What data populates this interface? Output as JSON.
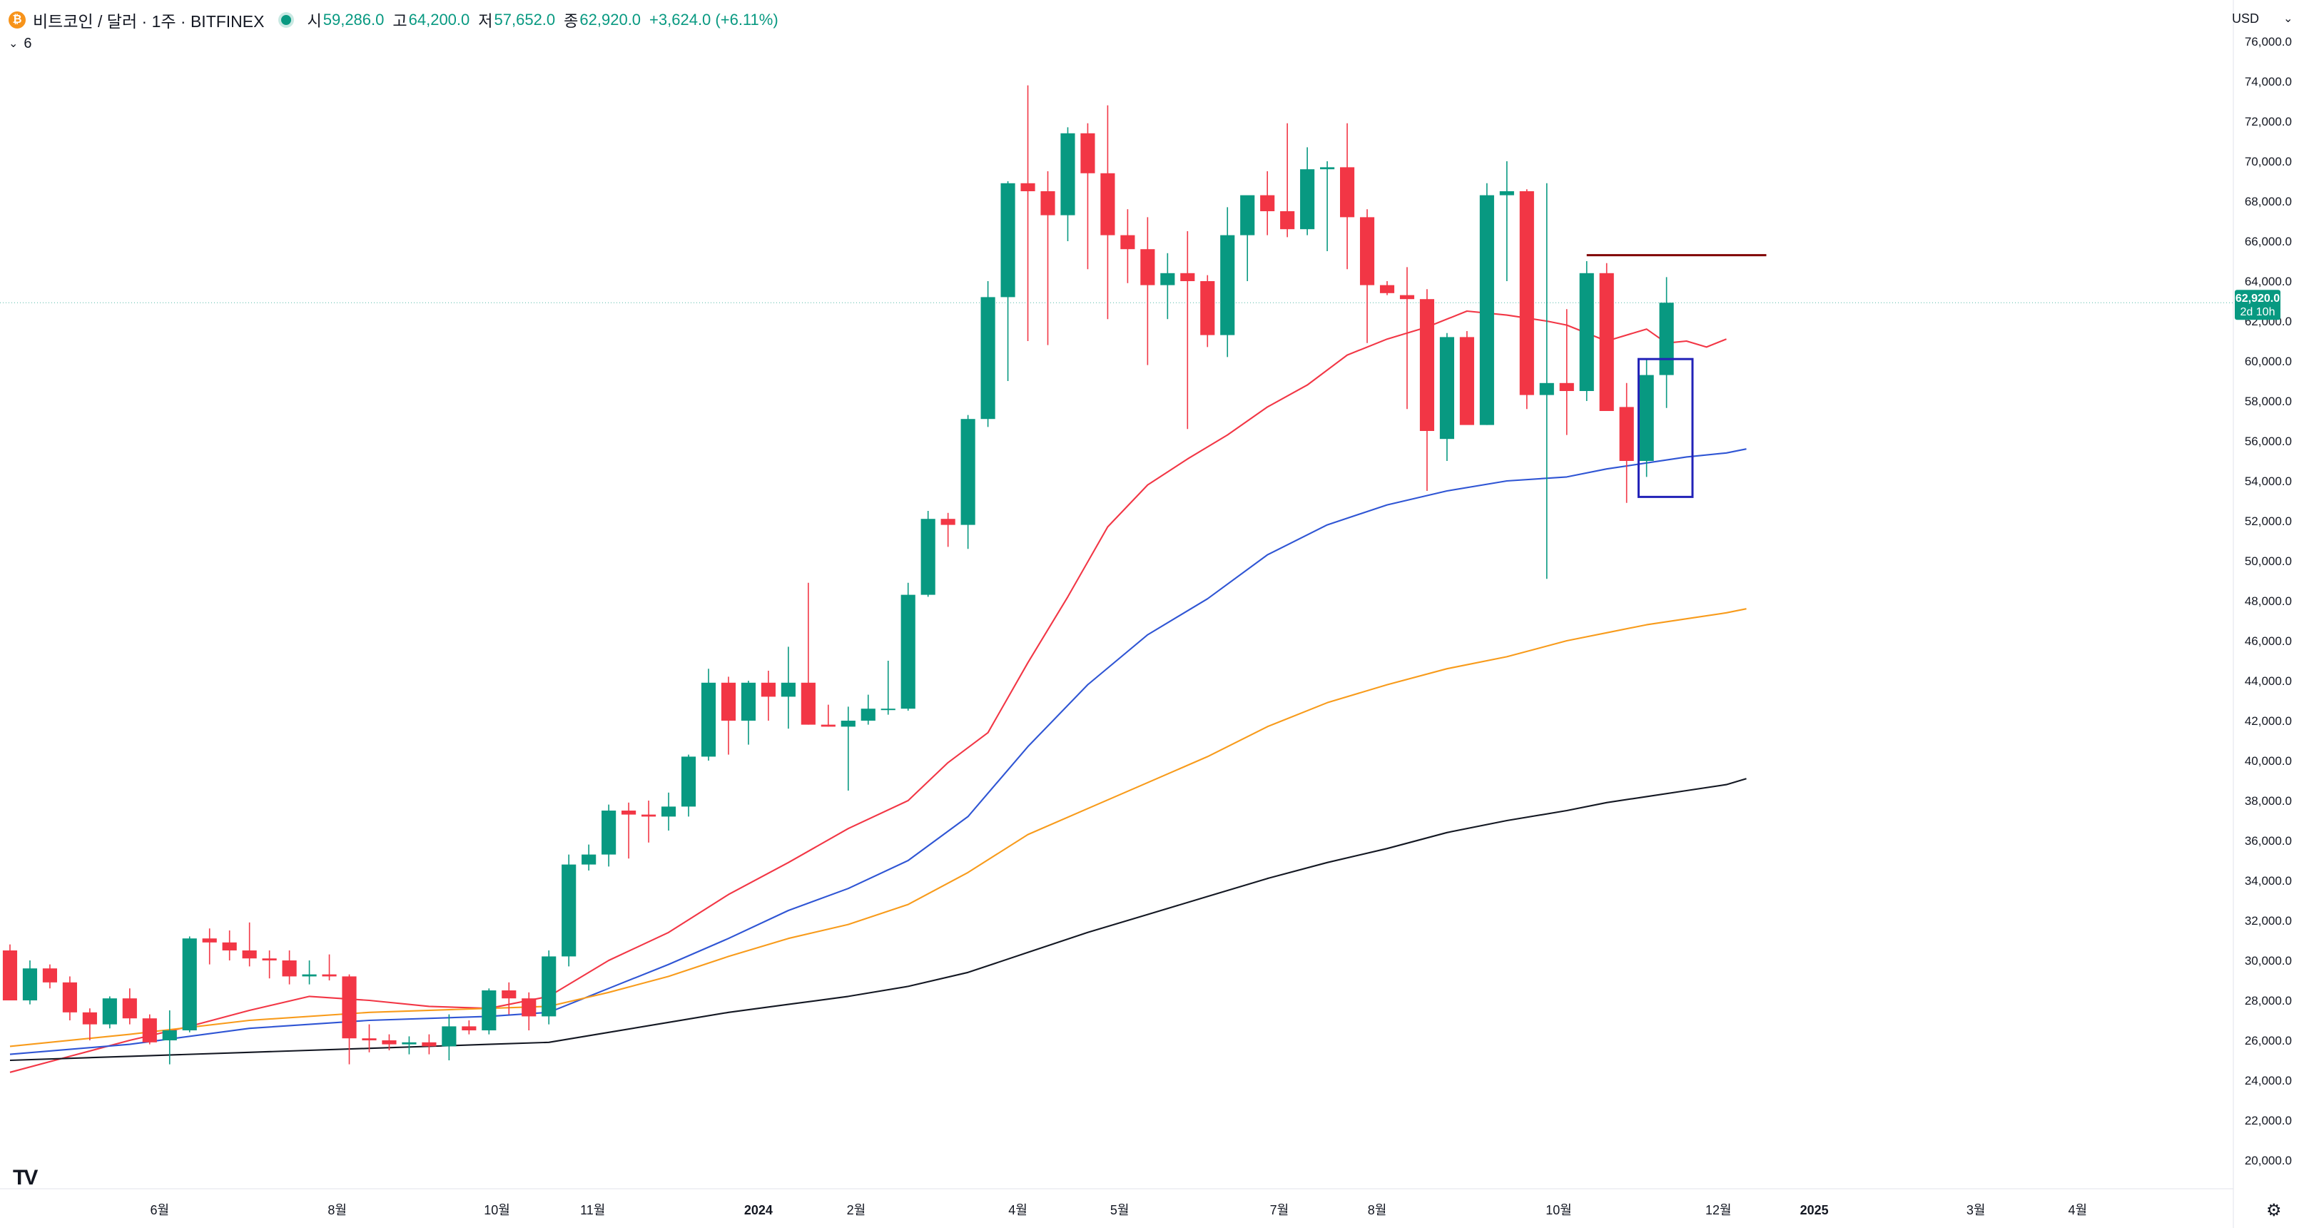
{
  "header": {
    "coin_icon": "bitcoin-icon",
    "symbol": "비트코인 / 달러 · 1주 · BITFINEX",
    "open_label": "시",
    "open_value": "59,286.0",
    "high_label": "고",
    "high_value": "64,200.0",
    "low_label": "저",
    "low_value": "57,652.0",
    "close_label": "종",
    "close_value": "62,920.0",
    "change": "+3,624.0 (+6.11%)"
  },
  "indicator_toggle": {
    "icon": "chevron-down-icon",
    "count": "6"
  },
  "currency": {
    "label": "USD",
    "icon": "chevron-down-icon"
  },
  "price_tag": {
    "value": "62,920.0",
    "countdown": "2d 10h"
  },
  "logo": "TV",
  "settings_icon": "gear-icon",
  "colors": {
    "up": "#089981",
    "down": "#f23645",
    "ma_short": "#f23645",
    "ma_mid": "#2f55d4",
    "ma_long": "#f89b1b",
    "ma_longest": "#131722",
    "resistance": "#800000",
    "box": "#2323b8"
  },
  "chart_data": {
    "type": "candlestick",
    "timeframe": "1W",
    "ylim": [
      19500,
      77000
    ],
    "y_ticks": [
      20000,
      22000,
      24000,
      26000,
      28000,
      30000,
      32000,
      34000,
      36000,
      38000,
      40000,
      42000,
      44000,
      46000,
      48000,
      50000,
      52000,
      54000,
      56000,
      58000,
      60000,
      62000,
      64000,
      66000,
      68000,
      70000,
      72000,
      74000,
      76000
    ],
    "y_tick_labels": [
      "20,000.0",
      "22,000.0",
      "24,000.0",
      "26,000.0",
      "28,000.0",
      "30,000.0",
      "32,000.0",
      "34,000.0",
      "36,000.0",
      "38,000.0",
      "40,000.0",
      "42,000.0",
      "44,000.0",
      "46,000.0",
      "48,000.0",
      "50,000.0",
      "52,000.0",
      "54,000.0",
      "56,000.0",
      "58,000.0",
      "60,000.0",
      "62,000.0",
      "64,000.0",
      "66,000.0",
      "68,000.0",
      "70,000.0",
      "72,000.0",
      "74,000.0",
      "76,000.0"
    ],
    "x_ticks": [
      {
        "label": "6월",
        "bar": 7.5
      },
      {
        "label": "8월",
        "bar": 16.4
      },
      {
        "label": "10월",
        "bar": 24.4
      },
      {
        "label": "11월",
        "bar": 29.2
      },
      {
        "label": "2024",
        "bar": 37.5
      },
      {
        "label": "2월",
        "bar": 42.4
      },
      {
        "label": "4월",
        "bar": 50.5
      },
      {
        "label": "5월",
        "bar": 55.6
      },
      {
        "label": "7월",
        "bar": 63.6
      },
      {
        "label": "8월",
        "bar": 68.5
      },
      {
        "label": "10월",
        "bar": 77.6
      },
      {
        "label": "12월",
        "bar": 85.6
      },
      {
        "label": "2025",
        "bar": 90.4
      },
      {
        "label": "3월",
        "bar": 98.5
      },
      {
        "label": "4월",
        "bar": 103.6
      }
    ],
    "x_bar_range": [
      -0.5,
      111.4
    ],
    "candles": [
      [
        30500,
        30800,
        28000,
        28000
      ],
      [
        28000,
        30000,
        27800,
        29600
      ],
      [
        29600,
        29800,
        28600,
        28900
      ],
      [
        28900,
        29200,
        27000,
        27400
      ],
      [
        27400,
        27600,
        26000,
        26800
      ],
      [
        26800,
        28200,
        26600,
        28100
      ],
      [
        28100,
        28600,
        26800,
        27100
      ],
      [
        27100,
        27300,
        25800,
        25900
      ],
      [
        26000,
        27500,
        24800,
        26500
      ],
      [
        26500,
        31200,
        26400,
        31100
      ],
      [
        31100,
        31600,
        29800,
        30900
      ],
      [
        30900,
        31500,
        30000,
        30500
      ],
      [
        30500,
        31900,
        29700,
        30100
      ],
      [
        30100,
        30500,
        29100,
        30000
      ],
      [
        30000,
        30500,
        28800,
        29200
      ],
      [
        29200,
        30000,
        28800,
        29300
      ],
      [
        29300,
        30300,
        29000,
        29200
      ],
      [
        29200,
        29300,
        24800,
        26100
      ],
      [
        26100,
        26800,
        25400,
        26000
      ],
      [
        26000,
        26300,
        25500,
        25800
      ],
      [
        25800,
        26200,
        25300,
        25900
      ],
      [
        25900,
        26300,
        25300,
        25700
      ],
      [
        25700,
        27300,
        25000,
        26700
      ],
      [
        26700,
        27000,
        26300,
        26500
      ],
      [
        26500,
        28600,
        26300,
        28500
      ],
      [
        28500,
        28900,
        27300,
        28100
      ],
      [
        28100,
        28400,
        26500,
        27200
      ],
      [
        27200,
        30500,
        26800,
        30200
      ],
      [
        30200,
        35300,
        29700,
        34800
      ],
      [
        34800,
        35800,
        34500,
        35300
      ],
      [
        35300,
        37800,
        34700,
        37500
      ],
      [
        37500,
        37900,
        35100,
        37300
      ],
      [
        37300,
        38000,
        35900,
        37200
      ],
      [
        37200,
        38400,
        36500,
        37700
      ],
      [
        37700,
        40300,
        37200,
        40200
      ],
      [
        40200,
        44600,
        40000,
        43900
      ],
      [
        43900,
        44200,
        40300,
        42000
      ],
      [
        42000,
        44000,
        40800,
        43900
      ],
      [
        43900,
        44500,
        42000,
        43200
      ],
      [
        43200,
        45700,
        41600,
        43900
      ],
      [
        43900,
        48900,
        41800,
        41800
      ],
      [
        41800,
        42800,
        41700,
        41700
      ],
      [
        41700,
        42700,
        38500,
        42000
      ],
      [
        42000,
        43300,
        41800,
        42600
      ],
      [
        42600,
        45000,
        42300,
        42600
      ],
      [
        42600,
        48900,
        42500,
        48300
      ],
      [
        48300,
        52500,
        48200,
        52100
      ],
      [
        52100,
        52400,
        50700,
        51800
      ],
      [
        51800,
        57300,
        50600,
        57100
      ],
      [
        57100,
        64000,
        56700,
        63200
      ],
      [
        63200,
        69000,
        59000,
        68900
      ],
      [
        68900,
        73800,
        61000,
        68500
      ],
      [
        68500,
        69500,
        60800,
        67300
      ],
      [
        67300,
        71700,
        66000,
        71400
      ],
      [
        71400,
        71900,
        64600,
        69400
      ],
      [
        69400,
        72800,
        62100,
        66300
      ],
      [
        66300,
        67600,
        63900,
        65600
      ],
      [
        65600,
        67200,
        59800,
        63800
      ],
      [
        63800,
        65400,
        62100,
        64400
      ],
      [
        64400,
        66500,
        56600,
        64000
      ],
      [
        64000,
        64300,
        60700,
        61300
      ],
      [
        61300,
        67700,
        60200,
        66300
      ],
      [
        66300,
        67800,
        64000,
        68300
      ],
      [
        68300,
        69500,
        66300,
        67500
      ],
      [
        67500,
        71900,
        66200,
        66600
      ],
      [
        66600,
        70700,
        66300,
        69600
      ],
      [
        69600,
        70000,
        65500,
        69700
      ],
      [
        69700,
        71900,
        64600,
        67200
      ],
      [
        67200,
        67600,
        60900,
        63800
      ],
      [
        63800,
        64000,
        63300,
        63400
      ],
      [
        63300,
        64700,
        57600,
        63100
      ],
      [
        63100,
        63600,
        53500,
        56500
      ],
      [
        56100,
        61400,
        55000,
        61200
      ],
      [
        61200,
        61500,
        57000,
        56800
      ],
      [
        56800,
        68900,
        56800,
        68300
      ],
      [
        68300,
        70000,
        64000,
        68500
      ],
      [
        68500,
        68600,
        57600,
        58300
      ],
      [
        58300,
        68900,
        49100,
        58900
      ],
      [
        58900,
        62600,
        56300,
        58500
      ],
      [
        58500,
        65000,
        58000,
        64400
      ],
      [
        64400,
        64900,
        57700,
        57500
      ],
      [
        57700,
        58900,
        52900,
        55000
      ],
      [
        55000,
        60100,
        54200,
        59300
      ],
      [
        59300,
        64200,
        57652,
        62920
      ]
    ],
    "series": [
      {
        "color_key": "ma_short",
        "width": 1.4,
        "points": [
          [
            0,
            24400
          ],
          [
            3,
            25200
          ],
          [
            6,
            26000
          ],
          [
            9,
            26700
          ],
          [
            12,
            27500
          ],
          [
            15,
            28200
          ],
          [
            18,
            28000
          ],
          [
            21,
            27700
          ],
          [
            24,
            27600
          ],
          [
            27,
            28200
          ],
          [
            30,
            30000
          ],
          [
            33,
            31400
          ],
          [
            36,
            33300
          ],
          [
            39,
            34900
          ],
          [
            42,
            36600
          ],
          [
            45,
            38000
          ],
          [
            47,
            39900
          ],
          [
            49,
            41400
          ],
          [
            51,
            44900
          ],
          [
            53,
            48200
          ],
          [
            55,
            51700
          ],
          [
            57,
            53800
          ],
          [
            59,
            55100
          ],
          [
            61,
            56300
          ],
          [
            63,
            57700
          ],
          [
            65,
            58800
          ],
          [
            67,
            60300
          ],
          [
            69,
            61100
          ],
          [
            71,
            61700
          ],
          [
            73,
            62500
          ],
          [
            75,
            62300
          ],
          [
            77,
            62000
          ],
          [
            78,
            61800
          ],
          [
            80,
            61000
          ],
          [
            82,
            61600
          ],
          [
            83,
            60900
          ],
          [
            84,
            61000
          ],
          [
            85,
            60700
          ],
          [
            86,
            61100
          ]
        ]
      },
      {
        "color_key": "ma_mid",
        "width": 1.4,
        "points": [
          [
            0,
            25300
          ],
          [
            6,
            25800
          ],
          [
            12,
            26600
          ],
          [
            18,
            27000
          ],
          [
            24,
            27200
          ],
          [
            27,
            27400
          ],
          [
            30,
            28600
          ],
          [
            33,
            29800
          ],
          [
            36,
            31100
          ],
          [
            39,
            32500
          ],
          [
            42,
            33600
          ],
          [
            45,
            35000
          ],
          [
            48,
            37200
          ],
          [
            51,
            40700
          ],
          [
            54,
            43800
          ],
          [
            57,
            46300
          ],
          [
            60,
            48100
          ],
          [
            63,
            50300
          ],
          [
            66,
            51800
          ],
          [
            69,
            52800
          ],
          [
            72,
            53500
          ],
          [
            75,
            54000
          ],
          [
            78,
            54200
          ],
          [
            80,
            54600
          ],
          [
            82,
            54900
          ],
          [
            84,
            55200
          ],
          [
            86,
            55400
          ],
          [
            87,
            55600
          ]
        ]
      },
      {
        "color_key": "ma_long",
        "width": 1.4,
        "points": [
          [
            0,
            25700
          ],
          [
            6,
            26300
          ],
          [
            12,
            27000
          ],
          [
            18,
            27400
          ],
          [
            24,
            27600
          ],
          [
            27,
            27700
          ],
          [
            30,
            28400
          ],
          [
            33,
            29200
          ],
          [
            36,
            30200
          ],
          [
            39,
            31100
          ],
          [
            42,
            31800
          ],
          [
            45,
            32800
          ],
          [
            48,
            34400
          ],
          [
            51,
            36300
          ],
          [
            54,
            37600
          ],
          [
            57,
            38900
          ],
          [
            60,
            40200
          ],
          [
            63,
            41700
          ],
          [
            66,
            42900
          ],
          [
            69,
            43800
          ],
          [
            72,
            44600
          ],
          [
            75,
            45200
          ],
          [
            78,
            46000
          ],
          [
            80,
            46400
          ],
          [
            82,
            46800
          ],
          [
            84,
            47100
          ],
          [
            86,
            47400
          ],
          [
            87,
            47600
          ]
        ]
      },
      {
        "color_key": "ma_longest",
        "width": 1.4,
        "points": [
          [
            0,
            25000
          ],
          [
            6,
            25200
          ],
          [
            12,
            25400
          ],
          [
            18,
            25600
          ],
          [
            24,
            25800
          ],
          [
            27,
            25900
          ],
          [
            30,
            26400
          ],
          [
            33,
            26900
          ],
          [
            36,
            27400
          ],
          [
            39,
            27800
          ],
          [
            42,
            28200
          ],
          [
            45,
            28700
          ],
          [
            48,
            29400
          ],
          [
            51,
            30400
          ],
          [
            54,
            31400
          ],
          [
            57,
            32300
          ],
          [
            60,
            33200
          ],
          [
            63,
            34100
          ],
          [
            66,
            34900
          ],
          [
            69,
            35600
          ],
          [
            72,
            36400
          ],
          [
            75,
            37000
          ],
          [
            78,
            37500
          ],
          [
            80,
            37900
          ],
          [
            82,
            38200
          ],
          [
            84,
            38500
          ],
          [
            86,
            38800
          ],
          [
            87,
            39100
          ]
        ]
      }
    ],
    "resistance_line": {
      "value": 65300,
      "from_bar": 79,
      "to_bar": 88
    },
    "highlight_box": {
      "bar_from": 81.6,
      "bar_to": 84.3,
      "y_high": 60100,
      "y_low": 53200
    },
    "last_price_line": 62920,
    "xlabel": "",
    "ylabel": "",
    "title": ""
  }
}
